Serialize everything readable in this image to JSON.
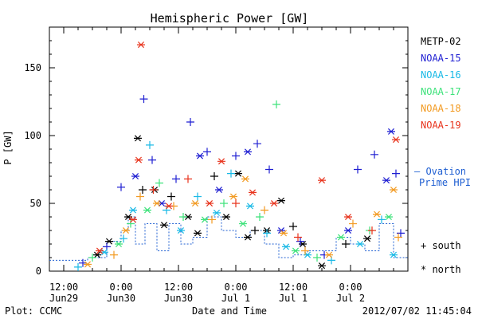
{
  "chart_data": {
    "type": "scatter",
    "title": "Hemispheric Power [GW]",
    "ylabel": "P [GW]",
    "xlabel": "Date and Time",
    "ylim": [
      0,
      180
    ],
    "xlim": [
      "2012-06-29 09:00",
      "2012-07-02 12:00"
    ],
    "y_ticks": [
      0,
      50,
      100,
      150
    ],
    "x_ticks": [
      {
        "time": "2012-06-29 12:00",
        "line1": "12:00",
        "line2": "Jun29"
      },
      {
        "time": "2012-06-30 00:00",
        "line1": "0:00",
        "line2": "Jun30"
      },
      {
        "time": "2012-06-30 12:00",
        "line1": "12:00",
        "line2": "Jun30"
      },
      {
        "time": "2012-07-01 00:00",
        "line1": "0:00",
        "line2": "Jul 1"
      },
      {
        "time": "2012-07-01 12:00",
        "line1": "12:00",
        "line2": "Jul 1"
      },
      {
        "time": "2012-07-02 00:00",
        "line1": "0:00",
        "line2": "Jul 2"
      }
    ],
    "legend": {
      "placement": "right",
      "series": [
        {
          "name": "METP-02",
          "color": "#000000"
        },
        {
          "name": "NOAA-15",
          "color": "#1f1fd2"
        },
        {
          "name": "NOAA-16",
          "color": "#19b9e6"
        },
        {
          "name": "NOAA-17",
          "color": "#3de27a"
        },
        {
          "name": "NOAA-18",
          "color": "#f29a21"
        },
        {
          "name": "NOAA-19",
          "color": "#e8331c"
        }
      ],
      "ovation_line1": "— Ovation",
      "ovation_line2": "Prime HPI",
      "ovation_color": "#1f5fd2",
      "south_label": "+ south",
      "north_label": "* north"
    },
    "ovation_hpi_color": "#1f5fd2",
    "series": [
      {
        "name": "METP-02",
        "color": "#000000",
        "points": [
          {
            "t": "2012-06-29 19:00",
            "v": 12,
            "m": "n"
          },
          {
            "t": "2012-06-29 21:30",
            "v": 22,
            "m": "n"
          },
          {
            "t": "2012-06-30 01:30",
            "v": 40,
            "m": "n"
          },
          {
            "t": "2012-06-30 03:30",
            "v": 98,
            "m": "n"
          },
          {
            "t": "2012-06-30 04:30",
            "v": 60,
            "m": "s"
          },
          {
            "t": "2012-06-30 07:00",
            "v": 60,
            "m": "n"
          },
          {
            "t": "2012-06-30 09:00",
            "v": 34,
            "m": "n"
          },
          {
            "t": "2012-06-30 10:30",
            "v": 55,
            "m": "s"
          },
          {
            "t": "2012-06-30 14:00",
            "v": 40,
            "m": "n"
          },
          {
            "t": "2012-06-30 16:00",
            "v": 28,
            "m": "n"
          },
          {
            "t": "2012-06-30 19:30",
            "v": 70,
            "m": "s"
          },
          {
            "t": "2012-06-30 22:00",
            "v": 40,
            "m": "n"
          },
          {
            "t": "2012-07-01 00:30",
            "v": 72,
            "m": "n"
          },
          {
            "t": "2012-07-01 02:30",
            "v": 25,
            "m": "n"
          },
          {
            "t": "2012-07-01 04:00",
            "v": 30,
            "m": "s"
          },
          {
            "t": "2012-07-01 06:30",
            "v": 30,
            "m": "n"
          },
          {
            "t": "2012-07-01 09:30",
            "v": 52,
            "m": "n"
          },
          {
            "t": "2012-07-01 12:00",
            "v": 33,
            "m": "s"
          },
          {
            "t": "2012-07-01 14:00",
            "v": 20,
            "m": "n"
          },
          {
            "t": "2012-07-01 18:00",
            "v": 4,
            "m": "n"
          },
          {
            "t": "2012-07-01 23:00",
            "v": 20,
            "m": "s"
          },
          {
            "t": "2012-07-02 03:30",
            "v": 24,
            "m": "n"
          }
        ]
      },
      {
        "name": "NOAA-15",
        "color": "#1f1fd2",
        "points": [
          {
            "t": "2012-06-29 16:00",
            "v": 6,
            "m": "s"
          },
          {
            "t": "2012-06-29 21:00",
            "v": 18,
            "m": "s"
          },
          {
            "t": "2012-06-30 00:00",
            "v": 62,
            "m": "s"
          },
          {
            "t": "2012-06-30 03:00",
            "v": 70,
            "m": "n"
          },
          {
            "t": "2012-06-30 04:45",
            "v": 127,
            "m": "s"
          },
          {
            "t": "2012-06-30 06:30",
            "v": 82,
            "m": "s"
          },
          {
            "t": "2012-06-30 08:30",
            "v": 50,
            "m": "n"
          },
          {
            "t": "2012-06-30 11:30",
            "v": 68,
            "m": "s"
          },
          {
            "t": "2012-06-30 14:30",
            "v": 110,
            "m": "s"
          },
          {
            "t": "2012-06-30 16:30",
            "v": 85,
            "m": "n"
          },
          {
            "t": "2012-06-30 18:00",
            "v": 88,
            "m": "s"
          },
          {
            "t": "2012-06-30 20:30",
            "v": 60,
            "m": "n"
          },
          {
            "t": "2012-07-01 00:00",
            "v": 85,
            "m": "s"
          },
          {
            "t": "2012-07-01 02:30",
            "v": 88,
            "m": "n"
          },
          {
            "t": "2012-07-01 04:30",
            "v": 94,
            "m": "s"
          },
          {
            "t": "2012-07-01 07:00",
            "v": 75,
            "m": "s"
          },
          {
            "t": "2012-07-01 09:30",
            "v": 30,
            "m": "n"
          },
          {
            "t": "2012-07-01 13:30",
            "v": 22,
            "m": "s"
          },
          {
            "t": "2012-07-01 18:30",
            "v": 12,
            "m": "s"
          },
          {
            "t": "2012-07-01 23:30",
            "v": 30,
            "m": "n"
          },
          {
            "t": "2012-07-02 01:30",
            "v": 75,
            "m": "s"
          },
          {
            "t": "2012-07-02 05:00",
            "v": 86,
            "m": "s"
          },
          {
            "t": "2012-07-02 07:30",
            "v": 67,
            "m": "n"
          },
          {
            "t": "2012-07-02 08:30",
            "v": 103,
            "m": "n"
          },
          {
            "t": "2012-07-02 09:30",
            "v": 72,
            "m": "s"
          },
          {
            "t": "2012-07-02 10:30",
            "v": 28,
            "m": "s"
          }
        ]
      },
      {
        "name": "NOAA-16",
        "color": "#19b9e6",
        "points": [
          {
            "t": "2012-06-29 15:00",
            "v": 3,
            "m": "s"
          },
          {
            "t": "2012-06-29 20:30",
            "v": 14,
            "m": "n"
          },
          {
            "t": "2012-06-30 00:30",
            "v": 24,
            "m": "s"
          },
          {
            "t": "2012-06-30 02:30",
            "v": 45,
            "m": "n"
          },
          {
            "t": "2012-06-30 06:00",
            "v": 93,
            "m": "s"
          },
          {
            "t": "2012-06-30 09:30",
            "v": 45,
            "m": "s"
          },
          {
            "t": "2012-06-30 12:30",
            "v": 30,
            "m": "n"
          },
          {
            "t": "2012-06-30 16:00",
            "v": 55,
            "m": "s"
          },
          {
            "t": "2012-06-30 20:00",
            "v": 43,
            "m": "n"
          },
          {
            "t": "2012-06-30 23:00",
            "v": 72,
            "m": "s"
          },
          {
            "t": "2012-07-01 03:00",
            "v": 48,
            "m": "n"
          },
          {
            "t": "2012-07-01 06:30",
            "v": 28,
            "m": "s"
          },
          {
            "t": "2012-07-01 10:30",
            "v": 18,
            "m": "n"
          },
          {
            "t": "2012-07-01 15:00",
            "v": 12,
            "m": "n"
          },
          {
            "t": "2012-07-01 20:00",
            "v": 8,
            "m": "s"
          },
          {
            "t": "2012-07-02 02:00",
            "v": 20,
            "m": "n"
          },
          {
            "t": "2012-07-02 06:30",
            "v": 38,
            "m": "s"
          },
          {
            "t": "2012-07-02 09:00",
            "v": 12,
            "m": "n"
          }
        ]
      },
      {
        "name": "NOAA-17",
        "color": "#3de27a",
        "points": [
          {
            "t": "2012-06-29 18:00",
            "v": 10,
            "m": "s"
          },
          {
            "t": "2012-06-29 23:30",
            "v": 20,
            "m": "n"
          },
          {
            "t": "2012-06-30 02:00",
            "v": 35,
            "m": "s"
          },
          {
            "t": "2012-06-30 05:30",
            "v": 45,
            "m": "n"
          },
          {
            "t": "2012-06-30 08:00",
            "v": 65,
            "m": "s"
          },
          {
            "t": "2012-06-30 13:00",
            "v": 40,
            "m": "s"
          },
          {
            "t": "2012-06-30 17:30",
            "v": 38,
            "m": "n"
          },
          {
            "t": "2012-06-30 21:30",
            "v": 50,
            "m": "s"
          },
          {
            "t": "2012-07-01 01:30",
            "v": 35,
            "m": "n"
          },
          {
            "t": "2012-07-01 05:00",
            "v": 40,
            "m": "s"
          },
          {
            "t": "2012-07-01 08:30",
            "v": 123,
            "m": "s"
          },
          {
            "t": "2012-07-01 12:30",
            "v": 15,
            "m": "n"
          },
          {
            "t": "2012-07-01 17:00",
            "v": 10,
            "m": "s"
          },
          {
            "t": "2012-07-01 22:00",
            "v": 25,
            "m": "n"
          },
          {
            "t": "2012-07-02 04:00",
            "v": 30,
            "m": "s"
          },
          {
            "t": "2012-07-02 08:00",
            "v": 40,
            "m": "n"
          }
        ]
      },
      {
        "name": "NOAA-18",
        "color": "#f29a21",
        "points": [
          {
            "t": "2012-06-29 17:00",
            "v": 5,
            "m": "n"
          },
          {
            "t": "2012-06-29 22:30",
            "v": 12,
            "m": "s"
          },
          {
            "t": "2012-06-30 01:00",
            "v": 30,
            "m": "n"
          },
          {
            "t": "2012-06-30 04:00",
            "v": 55,
            "m": "s"
          },
          {
            "t": "2012-06-30 07:30",
            "v": 50,
            "m": "n"
          },
          {
            "t": "2012-06-30 11:00",
            "v": 48,
            "m": "s"
          },
          {
            "t": "2012-06-30 15:30",
            "v": 50,
            "m": "n"
          },
          {
            "t": "2012-06-30 19:00",
            "v": 38,
            "m": "s"
          },
          {
            "t": "2012-06-30 23:30",
            "v": 55,
            "m": "n"
          },
          {
            "t": "2012-07-01 02:00",
            "v": 68,
            "m": "n"
          },
          {
            "t": "2012-07-01 06:00",
            "v": 45,
            "m": "s"
          },
          {
            "t": "2012-07-01 10:00",
            "v": 28,
            "m": "n"
          },
          {
            "t": "2012-07-01 14:30",
            "v": 15,
            "m": "s"
          },
          {
            "t": "2012-07-01 19:30",
            "v": 12,
            "m": "n"
          },
          {
            "t": "2012-07-02 00:30",
            "v": 35,
            "m": "s"
          },
          {
            "t": "2012-07-02 05:30",
            "v": 42,
            "m": "n"
          },
          {
            "t": "2012-07-02 09:00",
            "v": 60,
            "m": "n"
          },
          {
            "t": "2012-07-02 10:00",
            "v": 25,
            "m": "s"
          }
        ]
      },
      {
        "name": "NOAA-19",
        "color": "#e8331c",
        "points": [
          {
            "t": "2012-06-29 19:30",
            "v": 15,
            "m": "n"
          },
          {
            "t": "2012-06-30 02:30",
            "v": 38,
            "m": "n"
          },
          {
            "t": "2012-06-30 03:40",
            "v": 82,
            "m": "n"
          },
          {
            "t": "2012-06-30 04:10",
            "v": 167,
            "m": "n"
          },
          {
            "t": "2012-06-30 06:45",
            "v": 60,
            "m": "s"
          },
          {
            "t": "2012-06-30 10:00",
            "v": 48,
            "m": "n"
          },
          {
            "t": "2012-06-30 14:00",
            "v": 68,
            "m": "s"
          },
          {
            "t": "2012-06-30 18:30",
            "v": 50,
            "m": "n"
          },
          {
            "t": "2012-06-30 21:00",
            "v": 81,
            "m": "n"
          },
          {
            "t": "2012-07-01 00:00",
            "v": 50,
            "m": "s"
          },
          {
            "t": "2012-07-01 03:30",
            "v": 58,
            "m": "n"
          },
          {
            "t": "2012-07-01 08:00",
            "v": 50,
            "m": "n"
          },
          {
            "t": "2012-07-01 13:00",
            "v": 25,
            "m": "s"
          },
          {
            "t": "2012-07-01 18:00",
            "v": 67,
            "m": "n"
          },
          {
            "t": "2012-07-01 23:30",
            "v": 40,
            "m": "n"
          },
          {
            "t": "2012-07-02 04:30",
            "v": 30,
            "m": "s"
          },
          {
            "t": "2012-07-02 09:30",
            "v": 97,
            "m": "n"
          }
        ]
      }
    ],
    "ovation_hpi": [
      {
        "t": "2012-06-29 09:00",
        "v": 8
      },
      {
        "t": "2012-06-29 13:00",
        "v": 8
      },
      {
        "t": "2012-06-29 17:00",
        "v": 10
      },
      {
        "t": "2012-06-29 21:00",
        "v": 22
      },
      {
        "t": "2012-06-30 00:00",
        "v": 30
      },
      {
        "t": "2012-06-30 01:30",
        "v": 40
      },
      {
        "t": "2012-06-30 03:00",
        "v": 20
      },
      {
        "t": "2012-06-30 05:00",
        "v": 35
      },
      {
        "t": "2012-06-30 07:30",
        "v": 15
      },
      {
        "t": "2012-06-30 10:00",
        "v": 35
      },
      {
        "t": "2012-06-30 12:30",
        "v": 20
      },
      {
        "t": "2012-06-30 15:00",
        "v": 25
      },
      {
        "t": "2012-06-30 18:00",
        "v": 40
      },
      {
        "t": "2012-06-30 21:00",
        "v": 30
      },
      {
        "t": "2012-07-01 00:00",
        "v": 25
      },
      {
        "t": "2012-07-01 03:00",
        "v": 30
      },
      {
        "t": "2012-07-01 06:00",
        "v": 20
      },
      {
        "t": "2012-07-01 09:00",
        "v": 10
      },
      {
        "t": "2012-07-01 12:00",
        "v": 12
      },
      {
        "t": "2012-07-01 15:00",
        "v": 15
      },
      {
        "t": "2012-07-01 18:00",
        "v": 15
      },
      {
        "t": "2012-07-01 21:00",
        "v": 25
      },
      {
        "t": "2012-07-02 00:00",
        "v": 20
      },
      {
        "t": "2012-07-02 03:00",
        "v": 15
      },
      {
        "t": "2012-07-02 06:00",
        "v": 35
      },
      {
        "t": "2012-07-02 09:00",
        "v": 10
      },
      {
        "t": "2012-07-02 12:00",
        "v": 10
      }
    ],
    "footer_left": "Plot: CCMC",
    "footer_right": "2012/07/02 11:45:04"
  }
}
